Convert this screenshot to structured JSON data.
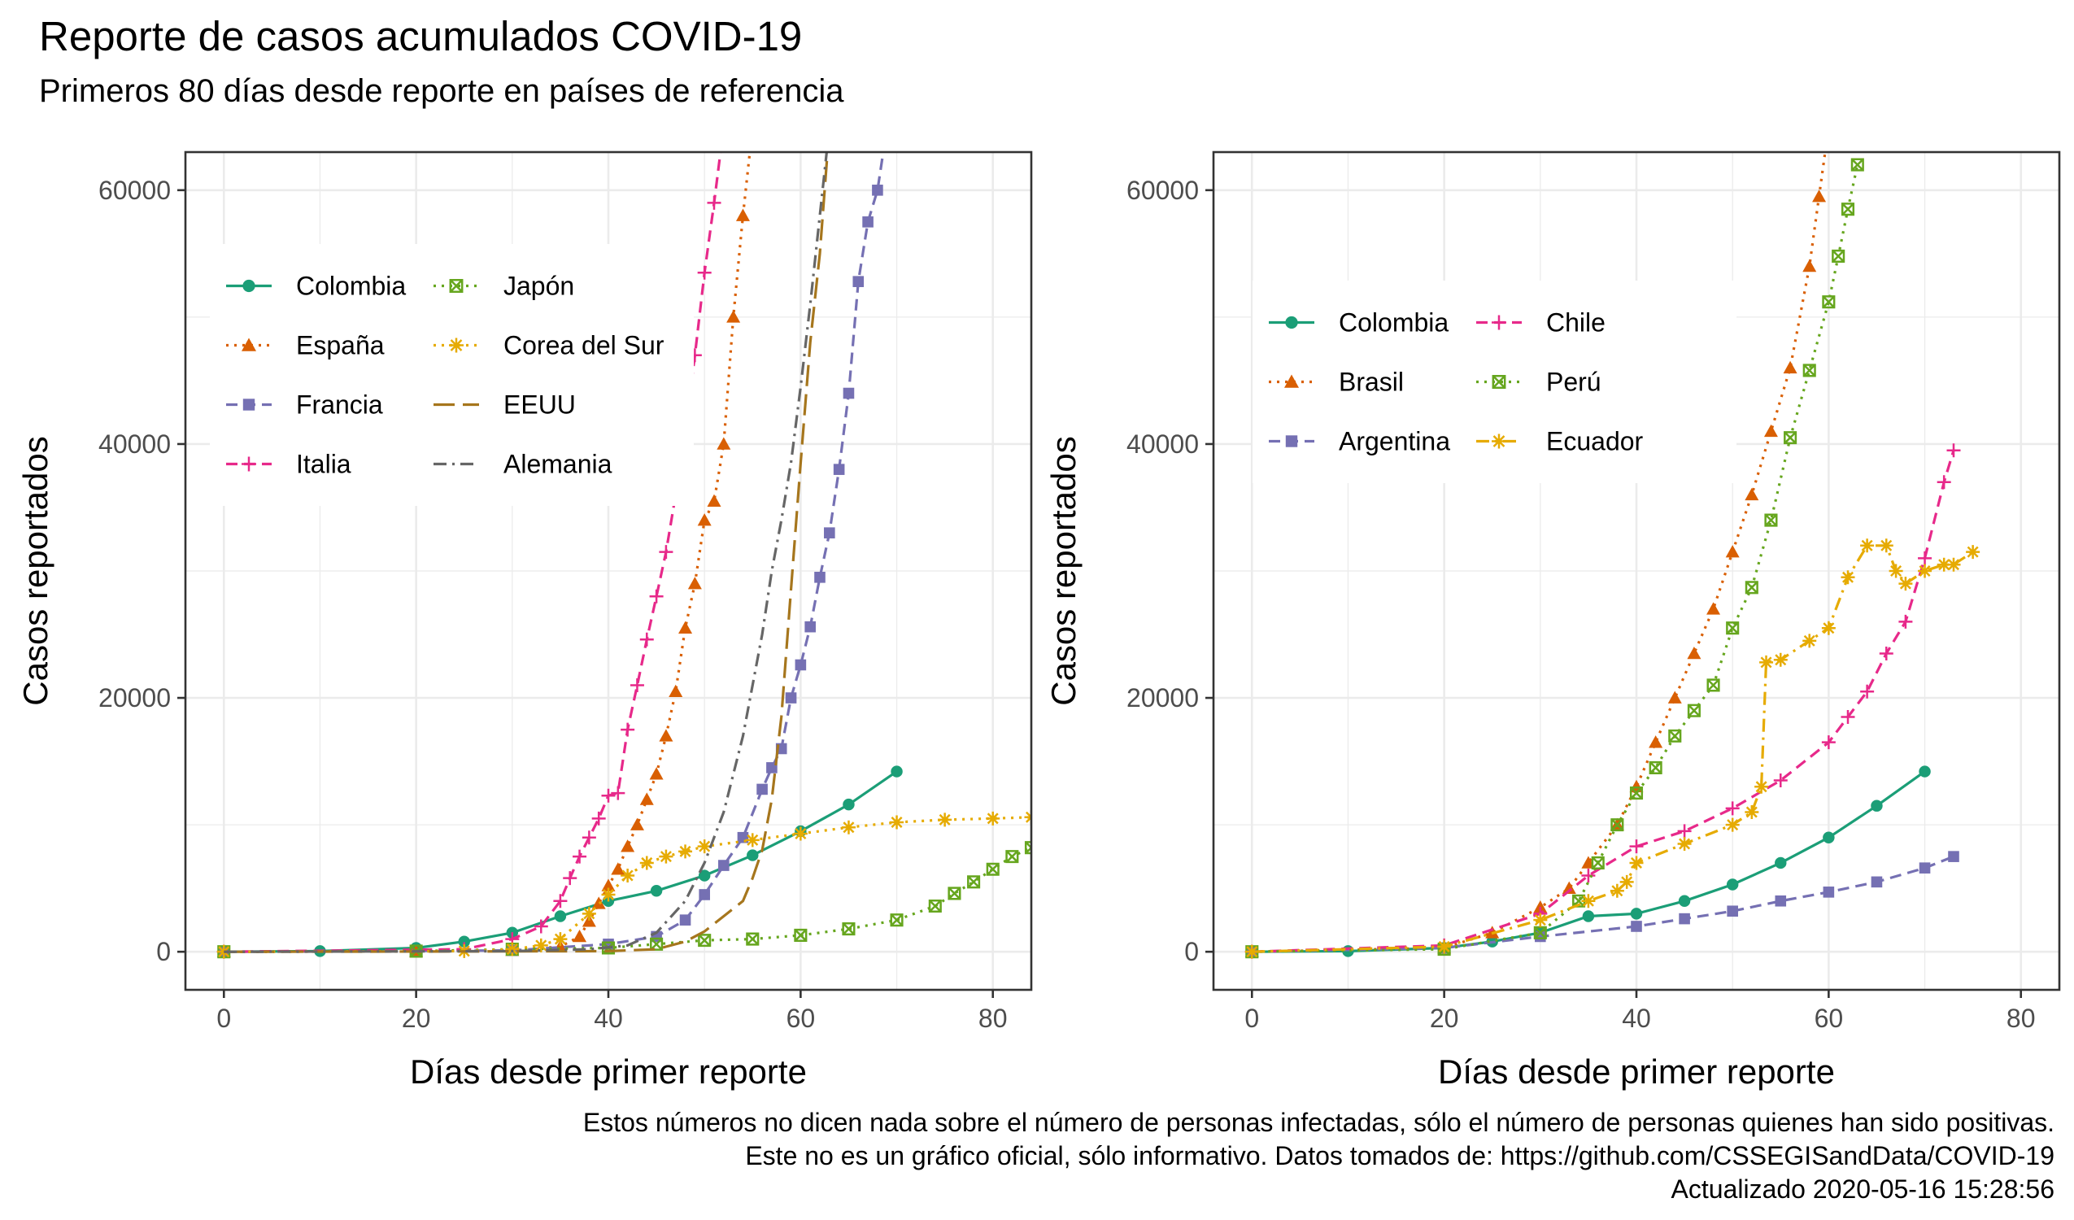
{
  "title": "Reporte de casos acumulados COVID-19",
  "subtitle": "Primeros 80 días desde reporte en países de referencia",
  "caption": {
    "line1": "Estos números no dicen nada sobre el número de personas infectadas, sólo el número de personas quienes han sido positivas.",
    "line2": "Este no es un gráfico oficial, sólo informativo. Datos tomados de: https://github.com/CSSEGISandData/COVID-19",
    "line3": "Actualizado 2020-05-16 15:28:56"
  },
  "chart_data": [
    {
      "type": "line",
      "panel": "left",
      "xlabel": "Días desde primer reporte",
      "ylabel": "Casos reportados",
      "xlim": [
        -4,
        84
      ],
      "ylim": [
        -3000,
        63000
      ],
      "xticks": [
        0,
        20,
        40,
        60,
        80
      ],
      "yticks": [
        0,
        20000,
        40000,
        60000
      ],
      "grid": true,
      "legend": "top-left, two columns",
      "series": [
        {
          "name": "Colombia",
          "color": "#1b9e77",
          "marker": "circle",
          "dash": "solid",
          "x": [
            0,
            10,
            20,
            25,
            30,
            35,
            40,
            45,
            50,
            55,
            60,
            65,
            70
          ],
          "y": [
            0,
            50,
            300,
            800,
            1500,
            2800,
            4000,
            4800,
            6000,
            7600,
            9500,
            11600,
            14200
          ]
        },
        {
          "name": "España",
          "color": "#d95f02",
          "marker": "triangle",
          "dash": "dotted",
          "x": [
            0,
            20,
            30,
            35,
            37,
            38,
            39,
            40,
            41,
            42,
            43,
            44,
            45,
            46,
            47,
            48,
            49,
            50,
            51,
            52,
            53,
            54,
            55
          ],
          "y": [
            0,
            30,
            100,
            400,
            1200,
            2400,
            3800,
            5200,
            6500,
            8300,
            10000,
            12000,
            14000,
            17000,
            20500,
            25500,
            29000,
            34000,
            35500,
            40000,
            50000,
            58000,
            65000
          ]
        },
        {
          "name": "Francia",
          "color": "#7570b3",
          "marker": "square",
          "dash": "dashed",
          "x": [
            0,
            30,
            40,
            45,
            48,
            50,
            52,
            54,
            56,
            57,
            58,
            59,
            60,
            61,
            62,
            63,
            64,
            65,
            66,
            67,
            68,
            69
          ],
          "y": [
            0,
            100,
            600,
            1200,
            2500,
            4500,
            6800,
            9000,
            12800,
            14500,
            16000,
            20000,
            22600,
            25600,
            29500,
            33000,
            38000,
            44000,
            52800,
            57500,
            60000,
            65000
          ]
        },
        {
          "name": "Italia",
          "color": "#e7298a",
          "marker": "plus",
          "dash": "dashed",
          "x": [
            0,
            25,
            30,
            33,
            35,
            36,
            37,
            38,
            39,
            40,
            41,
            42,
            43,
            44,
            45,
            46,
            47,
            48,
            49,
            50,
            51,
            52
          ],
          "y": [
            0,
            200,
            1000,
            2000,
            4000,
            5800,
            7500,
            9000,
            10500,
            12300,
            12500,
            17500,
            21000,
            24600,
            28000,
            31500,
            36000,
            41000,
            47000,
            53500,
            59000,
            65000
          ]
        },
        {
          "name": "Japón",
          "color": "#66a61e",
          "marker": "squarex",
          "dash": "dotted",
          "x": [
            0,
            20,
            30,
            40,
            45,
            50,
            55,
            60,
            65,
            70,
            74,
            76,
            78,
            80,
            82,
            84
          ],
          "y": [
            0,
            50,
            200,
            300,
            600,
            900,
            1000,
            1300,
            1800,
            2500,
            3600,
            4600,
            5500,
            6500,
            7500,
            8200
          ]
        },
        {
          "name": "Corea del Sur",
          "color": "#e6ab02",
          "marker": "star",
          "dash": "dotted",
          "x": [
            0,
            25,
            30,
            33,
            35,
            38,
            40,
            42,
            44,
            46,
            48,
            50,
            55,
            60,
            65,
            70,
            75,
            80,
            84
          ],
          "y": [
            0,
            50,
            200,
            500,
            1000,
            3000,
            4500,
            6000,
            7000,
            7500,
            7900,
            8300,
            8800,
            9300,
            9800,
            10200,
            10400,
            10500,
            10600
          ]
        },
        {
          "name": "EEUU",
          "color": "#a6761d",
          "marker": "none",
          "dash": "longdash",
          "x": [
            0,
            20,
            40,
            45,
            48,
            50,
            52,
            54,
            55,
            56,
            57,
            58,
            59,
            60,
            61,
            62,
            62.5,
            63
          ],
          "y": [
            0,
            20,
            50,
            200,
            800,
            1600,
            2800,
            4000,
            5800,
            8000,
            12000,
            18500,
            28500,
            38500,
            48000,
            55000,
            60000,
            65000
          ]
        },
        {
          "name": "Alemania",
          "color": "#666666",
          "marker": "none",
          "dash": "dashdot",
          "x": [
            0,
            30,
            38,
            42,
            45,
            48,
            50,
            52,
            54,
            56,
            57,
            58,
            59,
            60,
            61,
            62,
            63
          ],
          "y": [
            0,
            50,
            200,
            500,
            1500,
            4000,
            7000,
            11000,
            17000,
            25000,
            30000,
            34000,
            38500,
            44500,
            51000,
            58000,
            65000
          ]
        }
      ]
    },
    {
      "type": "line",
      "panel": "right",
      "xlabel": "Días desde primer reporte",
      "ylabel": "Casos reportados",
      "xlim": [
        -4,
        84
      ],
      "ylim": [
        -3000,
        63000
      ],
      "xticks": [
        0,
        20,
        40,
        60,
        80
      ],
      "yticks": [
        0,
        20000,
        40000,
        60000
      ],
      "grid": true,
      "legend": "top-left, two columns",
      "series": [
        {
          "name": "Colombia",
          "color": "#1b9e77",
          "marker": "circle",
          "dash": "solid",
          "x": [
            0,
            10,
            20,
            25,
            30,
            35,
            40,
            45,
            50,
            55,
            60,
            65,
            70
          ],
          "y": [
            0,
            50,
            300,
            800,
            1500,
            2800,
            3000,
            4000,
            5300,
            7000,
            9000,
            11500,
            14200
          ]
        },
        {
          "name": "Brasil",
          "color": "#d95f02",
          "marker": "triangle",
          "dash": "dotted",
          "x": [
            0,
            20,
            25,
            30,
            33,
            35,
            38,
            40,
            42,
            44,
            46,
            48,
            50,
            52,
            54,
            56,
            58,
            59,
            60
          ],
          "y": [
            0,
            300,
            1500,
            3500,
            5000,
            7000,
            10000,
            13000,
            16500,
            20000,
            23500,
            27000,
            31500,
            36000,
            41000,
            46000,
            54000,
            59500,
            65000
          ]
        },
        {
          "name": "Argentina",
          "color": "#7570b3",
          "marker": "square",
          "dash": "dashed",
          "x": [
            0,
            20,
            30,
            40,
            45,
            50,
            55,
            60,
            65,
            70,
            73
          ],
          "y": [
            0,
            300,
            1200,
            2000,
            2600,
            3200,
            4000,
            4700,
            5500,
            6600,
            7500
          ]
        },
        {
          "name": "Chile",
          "color": "#e7298a",
          "marker": "plus",
          "dash": "dashed",
          "x": [
            0,
            20,
            30,
            35,
            40,
            45,
            50,
            55,
            60,
            62,
            64,
            66,
            68,
            70,
            72,
            73
          ],
          "y": [
            0,
            500,
            3000,
            6000,
            8300,
            9500,
            11300,
            13500,
            16500,
            18500,
            20500,
            23500,
            26000,
            31000,
            37000,
            39500
          ]
        },
        {
          "name": "Perú",
          "color": "#66a61e",
          "marker": "squarex",
          "dash": "dotted",
          "x": [
            0,
            20,
            30,
            34,
            36,
            38,
            40,
            42,
            44,
            46,
            48,
            50,
            52,
            54,
            56,
            58,
            60,
            61,
            62,
            63
          ],
          "y": [
            0,
            200,
            1500,
            4000,
            7000,
            10000,
            12500,
            14500,
            17000,
            19000,
            21000,
            25500,
            28700,
            34000,
            40500,
            45800,
            51200,
            54800,
            58500,
            62000
          ]
        },
        {
          "name": "Ecuador",
          "color": "#e6ab02",
          "marker": "star",
          "dash": "dashdot",
          "x": [
            0,
            20,
            30,
            35,
            38,
            39,
            40,
            45,
            50,
            52,
            53,
            53.5,
            55,
            58,
            60,
            62,
            64,
            66,
            67,
            68,
            70,
            72,
            73,
            75
          ],
          "y": [
            0,
            400,
            2500,
            4000,
            4800,
            5500,
            7000,
            8500,
            10000,
            11000,
            13000,
            22800,
            23000,
            24500,
            25500,
            29500,
            32000,
            32000,
            30000,
            29000,
            30000,
            30500,
            30500,
            31500
          ]
        }
      ]
    }
  ]
}
